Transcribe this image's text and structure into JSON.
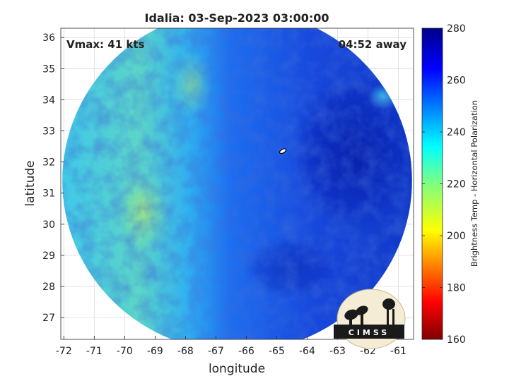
{
  "chart_data": {
    "type": "heatmap",
    "title": "Idalia: 03-Sep-2023 03:00:00",
    "xlabel": "longitude",
    "ylabel": "latitude",
    "xlim": [
      -72.1,
      -60.5
    ],
    "ylim": [
      26.3,
      36.3
    ],
    "x_ticks": [
      -72,
      -71,
      -70,
      -69,
      -68,
      -67,
      -66,
      -65,
      -64,
      -63,
      -62,
      -61
    ],
    "y_ticks": [
      27,
      28,
      29,
      30,
      31,
      32,
      33,
      34,
      35,
      36
    ],
    "grid": true,
    "annotations": {
      "vmax": "Vmax: 41 kts",
      "time_away": "04:52 away"
    },
    "colorbar": {
      "label": "Brightness Temp - Horizontal Polarization",
      "range": [
        160,
        280
      ],
      "ticks": [
        160,
        180,
        200,
        220,
        240,
        260,
        280
      ],
      "colormap": "jet"
    },
    "storm_center": {
      "lon": -64.8,
      "lat": 32.35
    },
    "swath": {
      "center_lon": -66.3,
      "center_lat": 31.4,
      "lon_radius": 5.75,
      "lat_radius": 5.5
    }
  },
  "logo": {
    "text": "CIMSS"
  },
  "colors": {
    "warm_bg": "#2ab8ee",
    "west_band": "#6ad8b0",
    "center_cold": "#2050e0",
    "deep_cold": "#0a2ab8"
  }
}
